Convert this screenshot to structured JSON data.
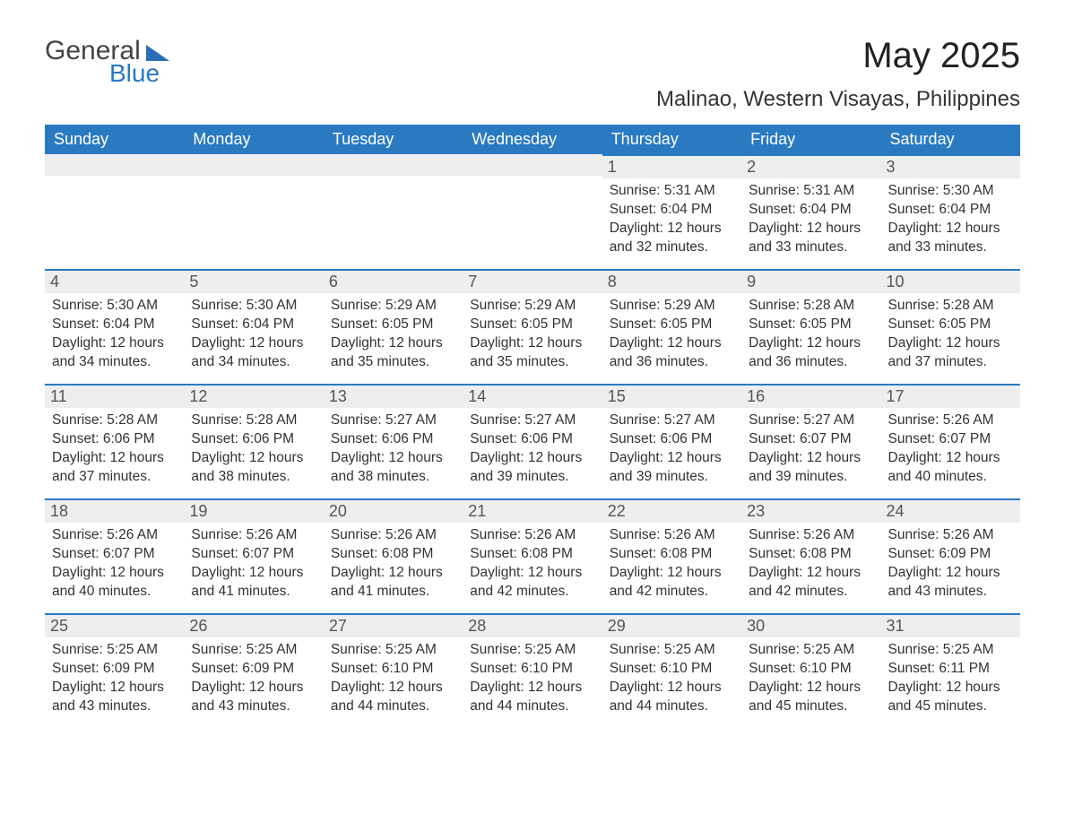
{
  "logo": {
    "word1": "General",
    "word2": "Blue"
  },
  "title": "May 2025",
  "location": "Malinao, Western Visayas, Philippines",
  "colors": {
    "header_bg": "#2a7ac2",
    "header_text": "#ffffff",
    "daynum_bg": "#eeeeee",
    "daynum_border": "#2a7ac2",
    "body_text": "#333333",
    "page_bg": "#ffffff"
  },
  "weekdays": [
    "Sunday",
    "Monday",
    "Tuesday",
    "Wednesday",
    "Thursday",
    "Friday",
    "Saturday"
  ],
  "weeks": [
    [
      null,
      null,
      null,
      null,
      {
        "n": "1",
        "sr": "5:31 AM",
        "ss": "6:04 PM",
        "dl": "12 hours and 32 minutes."
      },
      {
        "n": "2",
        "sr": "5:31 AM",
        "ss": "6:04 PM",
        "dl": "12 hours and 33 minutes."
      },
      {
        "n": "3",
        "sr": "5:30 AM",
        "ss": "6:04 PM",
        "dl": "12 hours and 33 minutes."
      }
    ],
    [
      {
        "n": "4",
        "sr": "5:30 AM",
        "ss": "6:04 PM",
        "dl": "12 hours and 34 minutes."
      },
      {
        "n": "5",
        "sr": "5:30 AM",
        "ss": "6:04 PM",
        "dl": "12 hours and 34 minutes."
      },
      {
        "n": "6",
        "sr": "5:29 AM",
        "ss": "6:05 PM",
        "dl": "12 hours and 35 minutes."
      },
      {
        "n": "7",
        "sr": "5:29 AM",
        "ss": "6:05 PM",
        "dl": "12 hours and 35 minutes."
      },
      {
        "n": "8",
        "sr": "5:29 AM",
        "ss": "6:05 PM",
        "dl": "12 hours and 36 minutes."
      },
      {
        "n": "9",
        "sr": "5:28 AM",
        "ss": "6:05 PM",
        "dl": "12 hours and 36 minutes."
      },
      {
        "n": "10",
        "sr": "5:28 AM",
        "ss": "6:05 PM",
        "dl": "12 hours and 37 minutes."
      }
    ],
    [
      {
        "n": "11",
        "sr": "5:28 AM",
        "ss": "6:06 PM",
        "dl": "12 hours and 37 minutes."
      },
      {
        "n": "12",
        "sr": "5:28 AM",
        "ss": "6:06 PM",
        "dl": "12 hours and 38 minutes."
      },
      {
        "n": "13",
        "sr": "5:27 AM",
        "ss": "6:06 PM",
        "dl": "12 hours and 38 minutes."
      },
      {
        "n": "14",
        "sr": "5:27 AM",
        "ss": "6:06 PM",
        "dl": "12 hours and 39 minutes."
      },
      {
        "n": "15",
        "sr": "5:27 AM",
        "ss": "6:06 PM",
        "dl": "12 hours and 39 minutes."
      },
      {
        "n": "16",
        "sr": "5:27 AM",
        "ss": "6:07 PM",
        "dl": "12 hours and 39 minutes."
      },
      {
        "n": "17",
        "sr": "5:26 AM",
        "ss": "6:07 PM",
        "dl": "12 hours and 40 minutes."
      }
    ],
    [
      {
        "n": "18",
        "sr": "5:26 AM",
        "ss": "6:07 PM",
        "dl": "12 hours and 40 minutes."
      },
      {
        "n": "19",
        "sr": "5:26 AM",
        "ss": "6:07 PM",
        "dl": "12 hours and 41 minutes."
      },
      {
        "n": "20",
        "sr": "5:26 AM",
        "ss": "6:08 PM",
        "dl": "12 hours and 41 minutes."
      },
      {
        "n": "21",
        "sr": "5:26 AM",
        "ss": "6:08 PM",
        "dl": "12 hours and 42 minutes."
      },
      {
        "n": "22",
        "sr": "5:26 AM",
        "ss": "6:08 PM",
        "dl": "12 hours and 42 minutes."
      },
      {
        "n": "23",
        "sr": "5:26 AM",
        "ss": "6:08 PM",
        "dl": "12 hours and 42 minutes."
      },
      {
        "n": "24",
        "sr": "5:26 AM",
        "ss": "6:09 PM",
        "dl": "12 hours and 43 minutes."
      }
    ],
    [
      {
        "n": "25",
        "sr": "5:25 AM",
        "ss": "6:09 PM",
        "dl": "12 hours and 43 minutes."
      },
      {
        "n": "26",
        "sr": "5:25 AM",
        "ss": "6:09 PM",
        "dl": "12 hours and 43 minutes."
      },
      {
        "n": "27",
        "sr": "5:25 AM",
        "ss": "6:10 PM",
        "dl": "12 hours and 44 minutes."
      },
      {
        "n": "28",
        "sr": "5:25 AM",
        "ss": "6:10 PM",
        "dl": "12 hours and 44 minutes."
      },
      {
        "n": "29",
        "sr": "5:25 AM",
        "ss": "6:10 PM",
        "dl": "12 hours and 44 minutes."
      },
      {
        "n": "30",
        "sr": "5:25 AM",
        "ss": "6:10 PM",
        "dl": "12 hours and 45 minutes."
      },
      {
        "n": "31",
        "sr": "5:25 AM",
        "ss": "6:11 PM",
        "dl": "12 hours and 45 minutes."
      }
    ]
  ],
  "labels": {
    "sunrise": "Sunrise: ",
    "sunset": "Sunset: ",
    "daylight": "Daylight: "
  }
}
